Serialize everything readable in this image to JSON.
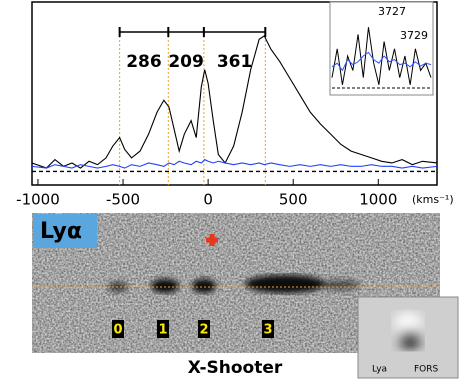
{
  "chart_data": {
    "type": "line",
    "x_label": "(kms⁻¹)",
    "x": [
      -1035,
      -950,
      -900,
      -850,
      -800,
      -750,
      -700,
      -650,
      -600,
      -560,
      -520,
      -490,
      -450,
      -400,
      -350,
      -300,
      -260,
      -230,
      -200,
      -170,
      -140,
      -100,
      -70,
      -40,
      -20,
      0,
      30,
      60,
      100,
      150,
      200,
      250,
      300,
      330,
      370,
      420,
      480,
      540,
      600,
      660,
      720,
      780,
      840,
      900,
      960,
      1020,
      1080,
      1140,
      1200,
      1260,
      1345
    ],
    "series": [
      {
        "color": "#000000",
        "values": [
          0.05,
          0.02,
          0.07,
          0.03,
          0.05,
          0.02,
          0.06,
          0.04,
          0.08,
          0.15,
          0.2,
          0.13,
          0.08,
          0.12,
          0.22,
          0.35,
          0.42,
          0.38,
          0.25,
          0.12,
          0.22,
          0.3,
          0.2,
          0.5,
          0.6,
          0.52,
          0.3,
          0.1,
          0.05,
          0.15,
          0.35,
          0.6,
          0.78,
          0.8,
          0.72,
          0.65,
          0.55,
          0.45,
          0.35,
          0.28,
          0.22,
          0.16,
          0.12,
          0.1,
          0.08,
          0.06,
          0.05,
          0.07,
          0.04,
          0.06,
          0.05
        ]
      },
      {
        "color": "#2040ff",
        "values": [
          0.03,
          0.02,
          0.04,
          0.03,
          0.02,
          0.04,
          0.03,
          0.02,
          0.03,
          0.04,
          0.03,
          0.02,
          0.04,
          0.03,
          0.05,
          0.04,
          0.03,
          0.05,
          0.04,
          0.06,
          0.05,
          0.04,
          0.06,
          0.05,
          0.07,
          0.06,
          0.05,
          0.06,
          0.05,
          0.04,
          0.05,
          0.04,
          0.05,
          0.04,
          0.05,
          0.04,
          0.03,
          0.04,
          0.03,
          0.04,
          0.03,
          0.04,
          0.03,
          0.03,
          0.04,
          0.03,
          0.03,
          0.02,
          0.03,
          0.02,
          0.03
        ]
      }
    ],
    "xlim": [
      -1035,
      1345
    ],
    "xticks": [
      -1000,
      -500,
      0,
      500,
      1000
    ],
    "ylim": [
      -0.08,
      1.0
    ],
    "hline": 0,
    "vlines": [
      -520,
      -234,
      -25,
      336
    ],
    "vline_color": "#f0a020",
    "separations": [
      286,
      209,
      361
    ],
    "inset": {
      "labels": [
        "3727",
        "3729"
      ],
      "ylim": [
        0,
        1
      ],
      "series": [
        {
          "color": "#000000",
          "values": [
            0.2,
            0.6,
            0.1,
            0.5,
            0.3,
            0.8,
            0.2,
            0.9,
            0.4,
            0.1,
            0.7,
            0.3,
            0.6,
            0.2,
            0.5,
            0.1,
            0.6,
            0.3,
            0.4,
            0.2
          ]
        },
        {
          "color": "#3050ff",
          "values": [
            0.35,
            0.4,
            0.3,
            0.45,
            0.38,
            0.42,
            0.5,
            0.55,
            0.45,
            0.4,
            0.5,
            0.42,
            0.45,
            0.38,
            0.4,
            0.35,
            0.42,
            0.36,
            0.4,
            0.38
          ]
        }
      ]
    }
  },
  "image": {
    "label": "Lyα",
    "title": "X-Shooter",
    "components": [
      "0",
      "1",
      "2",
      "3"
    ],
    "inset_labels": [
      "Lya",
      "FORS"
    ]
  }
}
